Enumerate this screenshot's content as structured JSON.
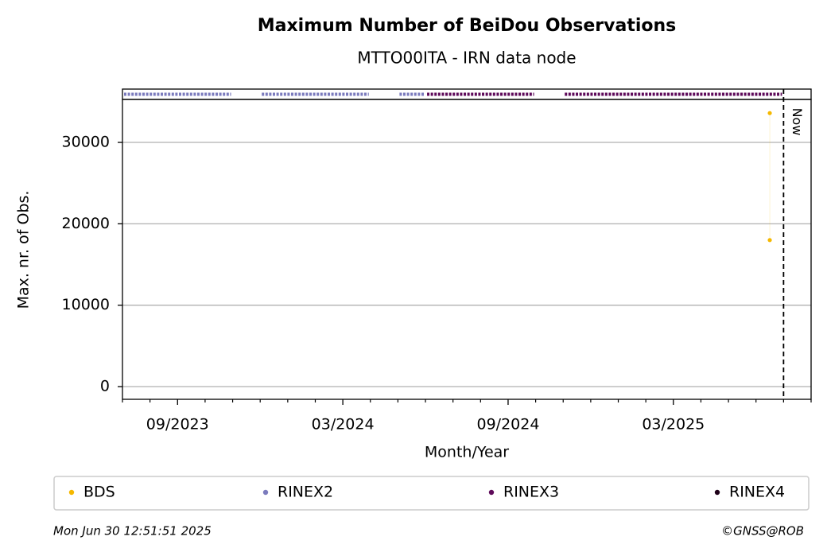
{
  "chart_data": {
    "type": "scatter",
    "title": "Maximum Number of BeiDou Observations",
    "subtitle": "MTTO00ITA - IRN data node",
    "x_label": "Month/Year",
    "y_label": "Max. nr. of Obs.",
    "xlim": [
      "2023-07",
      "2025-08"
    ],
    "xticks": [
      {
        "value": "2023-09",
        "label": "09/2023"
      },
      {
        "value": "2024-03",
        "label": "03/2024"
      },
      {
        "value": "2024-09",
        "label": "09/2024"
      },
      {
        "value": "2025-03",
        "label": "03/2025"
      }
    ],
    "xminorticks": [
      "2023-07",
      "2023-08",
      "2023-10",
      "2023-11",
      "2023-12",
      "2024-01",
      "2024-02",
      "2024-04",
      "2024-05",
      "2024-06",
      "2024-07",
      "2024-08",
      "2024-10",
      "2024-11",
      "2024-12",
      "2025-01",
      "2025-02",
      "2025-04",
      "2025-05",
      "2025-06",
      "2025-07",
      "2025-08"
    ],
    "ylim": [
      -1560,
      35280
    ],
    "yticks": [
      0,
      10000,
      20000,
      30000
    ],
    "grid": true,
    "now": {
      "x": "2025-07",
      "label": "Now"
    },
    "series": [
      {
        "name": "BDS",
        "color": "#f5b800",
        "x": [
          "2025-06",
          "2025-06"
        ],
        "values": [
          33600,
          18000
        ]
      },
      {
        "name": "RINEX2",
        "color": "#7b7bbd",
        "periods": [
          [
            "2023-07",
            "2023-11"
          ],
          [
            "2023-12",
            "2024-04"
          ],
          [
            "2024-05",
            "2024-06"
          ]
        ]
      },
      {
        "name": "RINEX3",
        "color": "#5e0a5a",
        "periods": [
          [
            "2024-06",
            "2024-10"
          ],
          [
            "2024-11",
            "2025-07"
          ]
        ]
      },
      {
        "name": "RINEX4",
        "color": "#1e0018",
        "periods": []
      }
    ],
    "footer_left": "Mon Jun 30 12:51:51 2025",
    "footer_right": "©GNSS@ROB"
  }
}
